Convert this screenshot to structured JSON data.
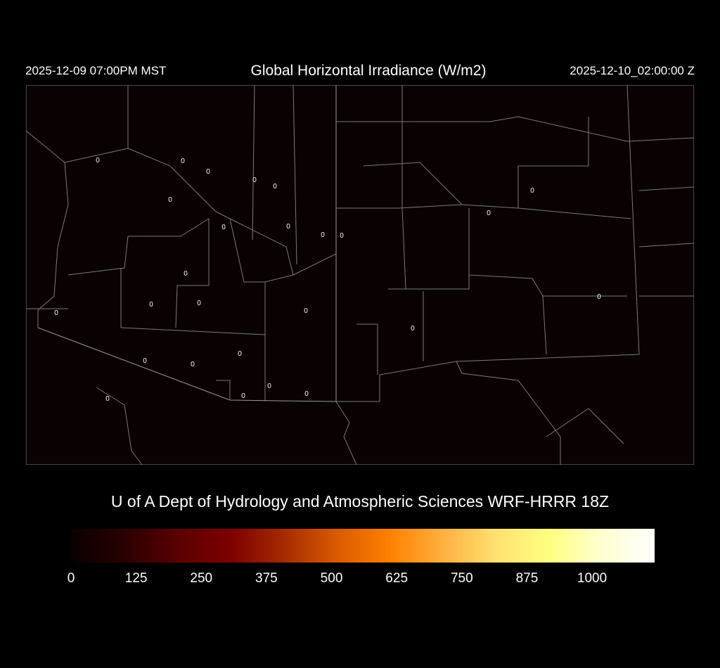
{
  "header": {
    "valid_local": "2025-12-09 07:00PM MST",
    "title": "Global Horizontal Irradiance (W/m2)",
    "valid_utc": "2025-12-10_02:00:00 Z"
  },
  "map": {
    "region": "Arizona / New Mexico",
    "background_color": "#0a0202",
    "border_color": "#7a7a7a",
    "station_values": [
      "0",
      "0",
      "0",
      "0",
      "0",
      "0",
      "0",
      "0",
      "0",
      "0",
      "0",
      "0",
      "0",
      "0",
      "0",
      "0",
      "0",
      "0",
      "0",
      "0",
      "0",
      "0",
      "0",
      "0",
      "0",
      "0",
      "0",
      "0"
    ]
  },
  "credit": "U of A Dept of Hydrology and Atmospheric Sciences WRF-HRRR 18Z",
  "colorbar": {
    "min": 0,
    "max": 1120,
    "ticks": [
      "0",
      "125",
      "250",
      "375",
      "500",
      "625",
      "750",
      "875",
      "1000"
    ],
    "colors": [
      "#0a0000",
      "#2a0000",
      "#5a0000",
      "#7d0000",
      "#a52a00",
      "#d85a00",
      "#ff8000",
      "#ffb040",
      "#ffe070",
      "#ffff80",
      "#ffffd0",
      "#ffffff"
    ]
  }
}
